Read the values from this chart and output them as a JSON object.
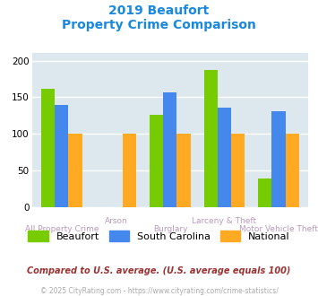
{
  "title_line1": "2019 Beaufort",
  "title_line2": "Property Crime Comparison",
  "categories": [
    "All Property Crime",
    "Arson",
    "Burglary",
    "Larceny & Theft",
    "Motor Vehicle Theft"
  ],
  "beaufort": [
    162,
    0,
    126,
    187,
    39
  ],
  "south_carolina": [
    139,
    0,
    157,
    136,
    131
  ],
  "national": [
    100,
    100,
    100,
    100,
    100
  ],
  "beaufort_color": "#77cc00",
  "sc_color": "#4488ee",
  "national_color": "#ffaa22",
  "bg_color": "#dde8ee",
  "ylim": [
    0,
    210
  ],
  "yticks": [
    0,
    50,
    100,
    150,
    200
  ],
  "title_color": "#1a88dd",
  "grid_color": "#ffffff",
  "footnote1": "Compared to U.S. average. (U.S. average equals 100)",
  "footnote2": "© 2025 CityRating.com - https://www.cityrating.com/crime-statistics/",
  "legend_labels": [
    "Beaufort",
    "South Carolina",
    "National"
  ],
  "xlabel_top": [
    "",
    "Arson",
    "",
    "Larceny & Theft",
    ""
  ],
  "xlabel_bot": [
    "All Property Crime",
    "",
    "Burglary",
    "",
    "Motor Vehicle Theft"
  ]
}
